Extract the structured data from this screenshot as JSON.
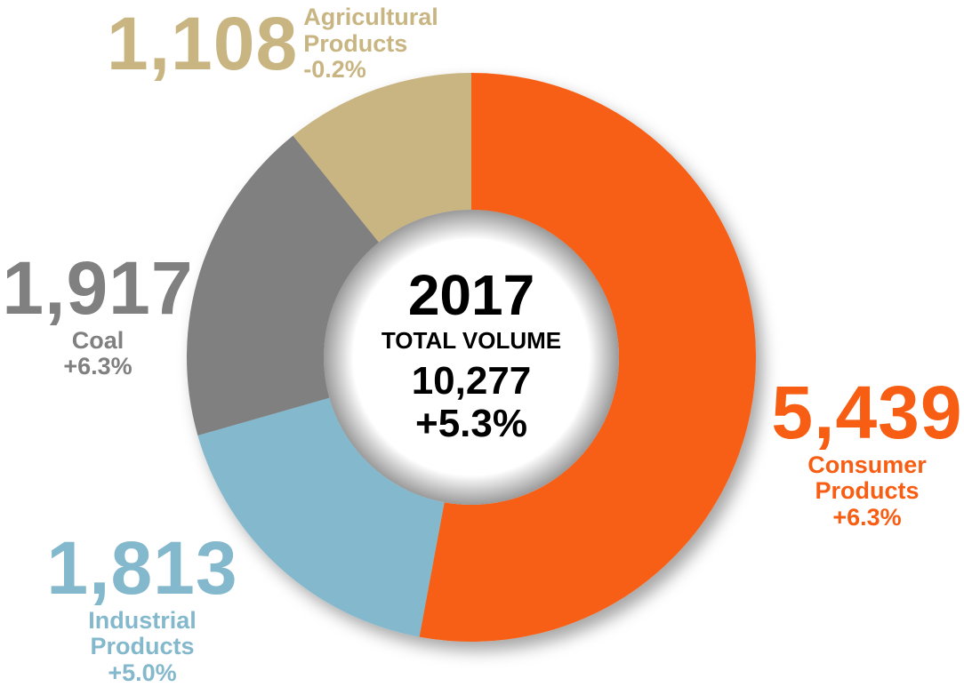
{
  "chart_data": {
    "type": "donut",
    "center_title": "2017",
    "center_subtitle": "TOTAL VOLUME",
    "total": 10277,
    "total_label": "10,277",
    "total_change": "+5.3%",
    "categories": [
      "Consumer Products",
      "Industrial Products",
      "Coal",
      "Agricultural Products"
    ],
    "values": [
      5439,
      1813,
      1917,
      1108
    ],
    "value_labels": [
      "5,439",
      "1,813",
      "1,917",
      "1,108"
    ],
    "change_labels": [
      "+6.3%",
      "+5.0%",
      "+6.3%",
      "-0.2%"
    ],
    "colors": [
      "#f75e14",
      "#84b8cc",
      "#808080",
      "#c8b582"
    ]
  }
}
